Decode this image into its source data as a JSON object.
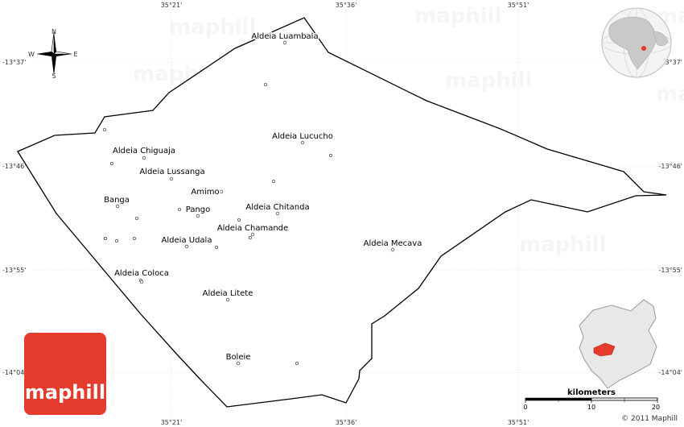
{
  "coordinates": {
    "top": [
      "35°21'",
      "35°36'",
      "35°51'"
    ],
    "bottom": [
      "35°21'",
      "35°36'",
      "35°51'"
    ],
    "left": [
      "-13°37'",
      "-13°46'",
      "-13°55'",
      "-14°04'"
    ],
    "right": [
      "-13°37'",
      "-13°46'",
      "-13°55'",
      "-14°04'"
    ]
  },
  "compass": {
    "n": "N",
    "s": "S",
    "e": "E",
    "w": "W"
  },
  "places": [
    {
      "name": "Aldeia Luambala"
    },
    {
      "name": "Aldeia Lucucho"
    },
    {
      "name": "Aldeia Chiguaja"
    },
    {
      "name": "Aldeia Lussanga"
    },
    {
      "name": "Amimo"
    },
    {
      "name": "Banga"
    },
    {
      "name": "Pango"
    },
    {
      "name": "Aldeia Chitanda"
    },
    {
      "name": "Aldeia Chamande"
    },
    {
      "name": "Aldeia Udala"
    },
    {
      "name": "Aldeia Mecava"
    },
    {
      "name": "Aldeia Coloca"
    },
    {
      "name": "Aldeia Litete"
    },
    {
      "name": "Boleie"
    }
  ],
  "watermark": "maphill",
  "logo": "maphill",
  "scale": {
    "title": "kilometers",
    "ticks": [
      "0",
      "10",
      "20"
    ]
  },
  "copyright": "© 2011 Maphill",
  "colors": {
    "brand": "#e53b2c",
    "region_fill": "#e8e8e8",
    "highlight": "#e53b2c"
  }
}
